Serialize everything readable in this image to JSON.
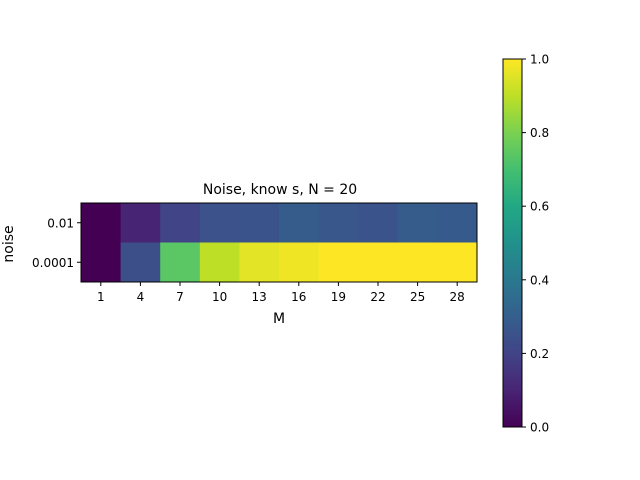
{
  "chart_data": {
    "type": "heatmap",
    "title": "Noise, know s, N = 20",
    "xlabel": "M",
    "ylabel": "noise",
    "x_categories": [
      "1",
      "4",
      "7",
      "10",
      "13",
      "16",
      "19",
      "22",
      "25",
      "28"
    ],
    "y_categories": [
      "0.01",
      "0.0001"
    ],
    "values": [
      [
        0.0,
        0.1,
        0.2,
        0.25,
        0.26,
        0.29,
        0.27,
        0.26,
        0.29,
        0.28
      ],
      [
        0.0,
        0.24,
        0.74,
        0.9,
        0.96,
        0.98,
        1.0,
        1.0,
        1.0,
        1.0
      ]
    ],
    "colormap": "viridis",
    "colorbar": {
      "range": [
        0.0,
        1.0
      ],
      "ticks": [
        "0.0",
        "0.2",
        "0.4",
        "0.6",
        "0.8",
        "1.0"
      ]
    },
    "grid": false
  }
}
